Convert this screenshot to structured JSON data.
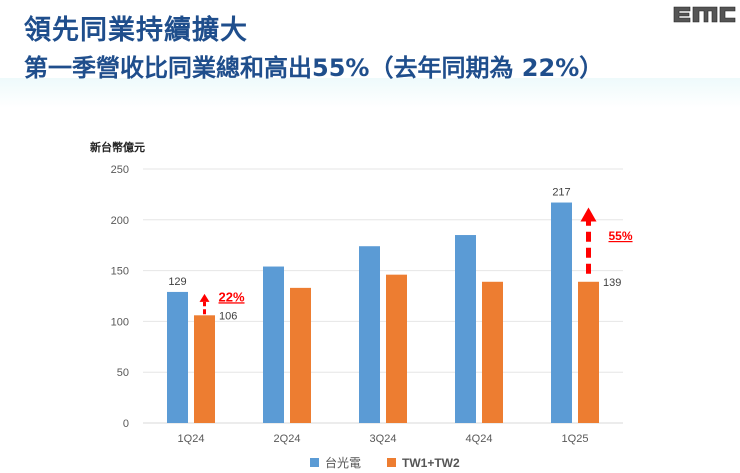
{
  "header": {
    "title": "領先同業持續擴大",
    "subtitle": "第一季營收比同業總和高出55%（去年同期為 22%）",
    "logo_text": "EMC"
  },
  "colors": {
    "title": "#1f4e8c",
    "series_a": "#5b9bd5",
    "series_b": "#ed7d31",
    "annotation": "#ff0000",
    "gridline": "#e6e6e6"
  },
  "chart_data": {
    "type": "bar",
    "title": "",
    "xlabel": "",
    "ylabel": "新台幣億元",
    "ylim": [
      0,
      250
    ],
    "yticks": [
      0,
      50,
      100,
      150,
      200,
      250
    ],
    "grid": true,
    "legend_position": "bottom",
    "categories": [
      "1Q24",
      "2Q24",
      "3Q24",
      "4Q24",
      "1Q25"
    ],
    "series": [
      {
        "name": "台光電",
        "color": "#5b9bd5",
        "values": [
          129,
          154,
          174,
          185,
          217
        ]
      },
      {
        "name": "TW1+TW2",
        "color": "#ed7d31",
        "values": [
          106,
          133,
          146,
          139,
          139
        ]
      }
    ],
    "data_labels": [
      {
        "category": "1Q24",
        "series": "台光電",
        "text": "129"
      },
      {
        "category": "1Q24",
        "series": "TW1+TW2",
        "text": "106"
      },
      {
        "category": "1Q25",
        "series": "台光電",
        "text": "217"
      },
      {
        "category": "1Q25",
        "series": "TW1+TW2",
        "text": "139"
      }
    ],
    "annotations": [
      {
        "category": "1Q24",
        "text": "22%",
        "type": "dashed-up-arrow"
      },
      {
        "category": "1Q25",
        "text": "55%",
        "type": "dashed-up-arrow"
      }
    ]
  }
}
